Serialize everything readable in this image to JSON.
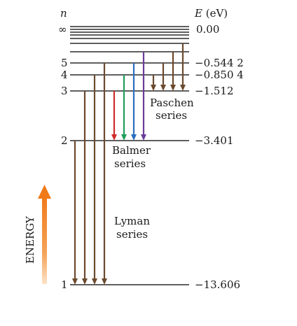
{
  "header": {
    "n_label": "n",
    "e_label": "E (eV)"
  },
  "levels": [
    {
      "n": "∞",
      "energy": "0.00"
    },
    {
      "n": "5",
      "energy": "−0.544 2"
    },
    {
      "n": "4",
      "energy": "−0.850 4"
    },
    {
      "n": "3",
      "energy": "−1.512"
    },
    {
      "n": "2",
      "energy": "−3.401"
    },
    {
      "n": "1",
      "energy": "−13.606"
    }
  ],
  "series": {
    "paschen": [
      "Paschen",
      "series"
    ],
    "balmer": [
      "Balmer",
      "series"
    ],
    "lyman": [
      "Lyman",
      "series"
    ]
  },
  "energy_axis_label": "ENERGY",
  "colors": {
    "level_line": "#2a2a2a",
    "transition_brown": "#6b4a2e",
    "balmer_red": "#d22a2a",
    "balmer_green": "#1f9e5a",
    "balmer_blue": "#2a6fc0",
    "balmer_violet": "#6a3d9a",
    "energy_arrow": "#f07a1a"
  }
}
